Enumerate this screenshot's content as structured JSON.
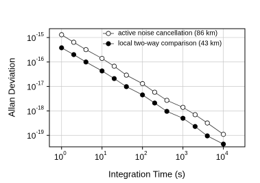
{
  "chart_data": {
    "type": "line",
    "x_label": "Integration Time (s)",
    "y_label": "Allan Deviation",
    "log_x": true,
    "log_y": true,
    "grid": true,
    "legend": "upper right",
    "xlim": [
      0.5,
      34000
    ],
    "ylim": [
      3.4e-20,
      2.3e-15
    ],
    "xticks": [
      {
        "value": 1,
        "label": "10",
        "exponent": "0"
      },
      {
        "value": 10,
        "label": "10",
        "exponent": "1"
      },
      {
        "value": 100,
        "label": "10",
        "exponent": "2"
      },
      {
        "value": 1000,
        "label": "10",
        "exponent": "3"
      },
      {
        "value": 10000,
        "label": "10",
        "exponent": "4"
      }
    ],
    "yticks": [
      {
        "value": 1e-15,
        "label": "10",
        "exponent": "-15"
      },
      {
        "value": 1e-16,
        "label": "10",
        "exponent": "-16"
      },
      {
        "value": 1e-17,
        "label": "10",
        "exponent": "-17"
      },
      {
        "value": 1e-18,
        "label": "10",
        "exponent": "-18"
      },
      {
        "value": 1e-19,
        "label": "10",
        "exponent": "-19"
      }
    ],
    "x": [
      1,
      2,
      4,
      10,
      20,
      40,
      100,
      200,
      400,
      1000,
      2000,
      4000,
      10000
    ],
    "series": [
      {
        "name": "active noise cancellation (86 km)",
        "color": "#333333",
        "marker_fill": "#ffffff",
        "values": [
          1.3e-15,
          6.4e-16,
          3.2e-16,
          1.4e-16,
          6.7e-17,
          2.9e-17,
          1.3e-17,
          5.8e-18,
          2.7e-18,
          1.4e-18,
          7e-19,
          3.2e-19,
          1.1e-19
        ]
      },
      {
        "name": "local two-way comparison (43 km)",
        "color": "#333333",
        "marker_fill": "#000000",
        "values": [
          3.8e-16,
          2e-16,
          1e-16,
          4.3e-17,
          2.1e-17,
          9.8e-18,
          4.5e-18,
          2.1e-18,
          9.6e-19,
          5e-19,
          2.3e-19,
          9.5e-20,
          4.4e-20
        ]
      }
    ]
  }
}
